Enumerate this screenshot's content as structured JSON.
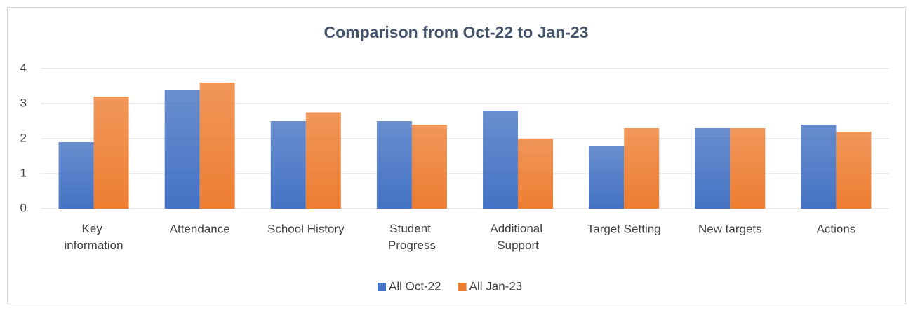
{
  "chart_data": {
    "type": "bar",
    "title": "Comparison from Oct-22 to Jan-23",
    "categories": [
      "Key information",
      "Attendance",
      "School History",
      "Student Progress",
      "Additional Support",
      "Target Setting",
      "New targets",
      "Actions"
    ],
    "series": [
      {
        "name": "All Oct-22",
        "color": "#4472c4",
        "values": [
          1.9,
          3.4,
          2.5,
          2.5,
          2.8,
          1.8,
          2.3,
          2.4
        ]
      },
      {
        "name": "All Jan-23",
        "color": "#ed7d31",
        "values": [
          3.2,
          3.6,
          2.75,
          2.4,
          2.0,
          2.3,
          2.3,
          2.2
        ]
      }
    ],
    "ylim": [
      0,
      4
    ],
    "yticks": [
      0,
      1,
      2,
      3,
      4
    ],
    "grid": true,
    "legend": "bottom"
  }
}
